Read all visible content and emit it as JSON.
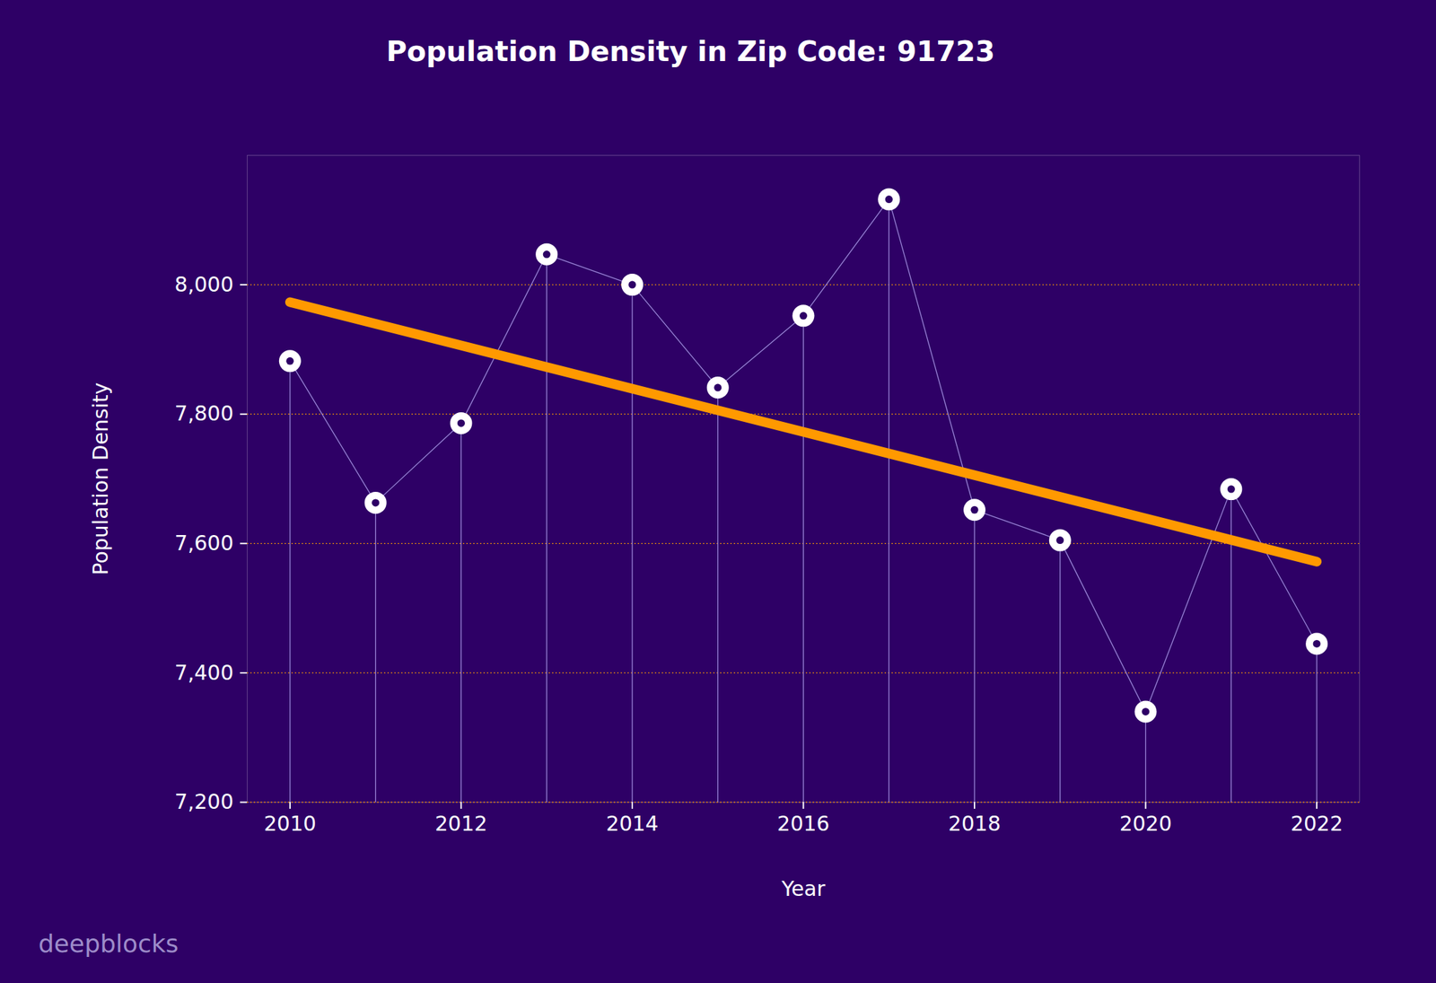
{
  "chart_data": {
    "type": "line",
    "title": "Population Density in Zip Code: 91723",
    "x_label": "Year",
    "y_label": "Population Density",
    "x": [
      2010,
      2011,
      2012,
      2013,
      2014,
      2015,
      2016,
      2017,
      2018,
      2019,
      2020,
      2021,
      2022
    ],
    "values": [
      7882,
      7663,
      7786,
      8047,
      8000,
      7841,
      7952,
      8132,
      7652,
      7605,
      7340,
      7684,
      7445
    ],
    "color": "#ffffff",
    "marker": "o",
    "trend": {
      "x": [
        2010,
        2022
      ],
      "values": [
        7973,
        7572
      ],
      "color": "#ff9900"
    },
    "xlim": [
      2009.5,
      2022.5
    ],
    "xticks": [
      2010,
      2012,
      2014,
      2016,
      2018,
      2020,
      2022
    ],
    "ylim": [
      7200,
      8200
    ],
    "yticks": [
      {
        "value": 7200,
        "label": "7,200"
      },
      {
        "value": 7400,
        "label": "7,400"
      },
      {
        "value": 7600,
        "label": "7,600"
      },
      {
        "value": 7800,
        "label": "7,800"
      },
      {
        "value": 8000,
        "label": "8,000"
      }
    ],
    "grid": true,
    "watermark": "deepblocks"
  }
}
